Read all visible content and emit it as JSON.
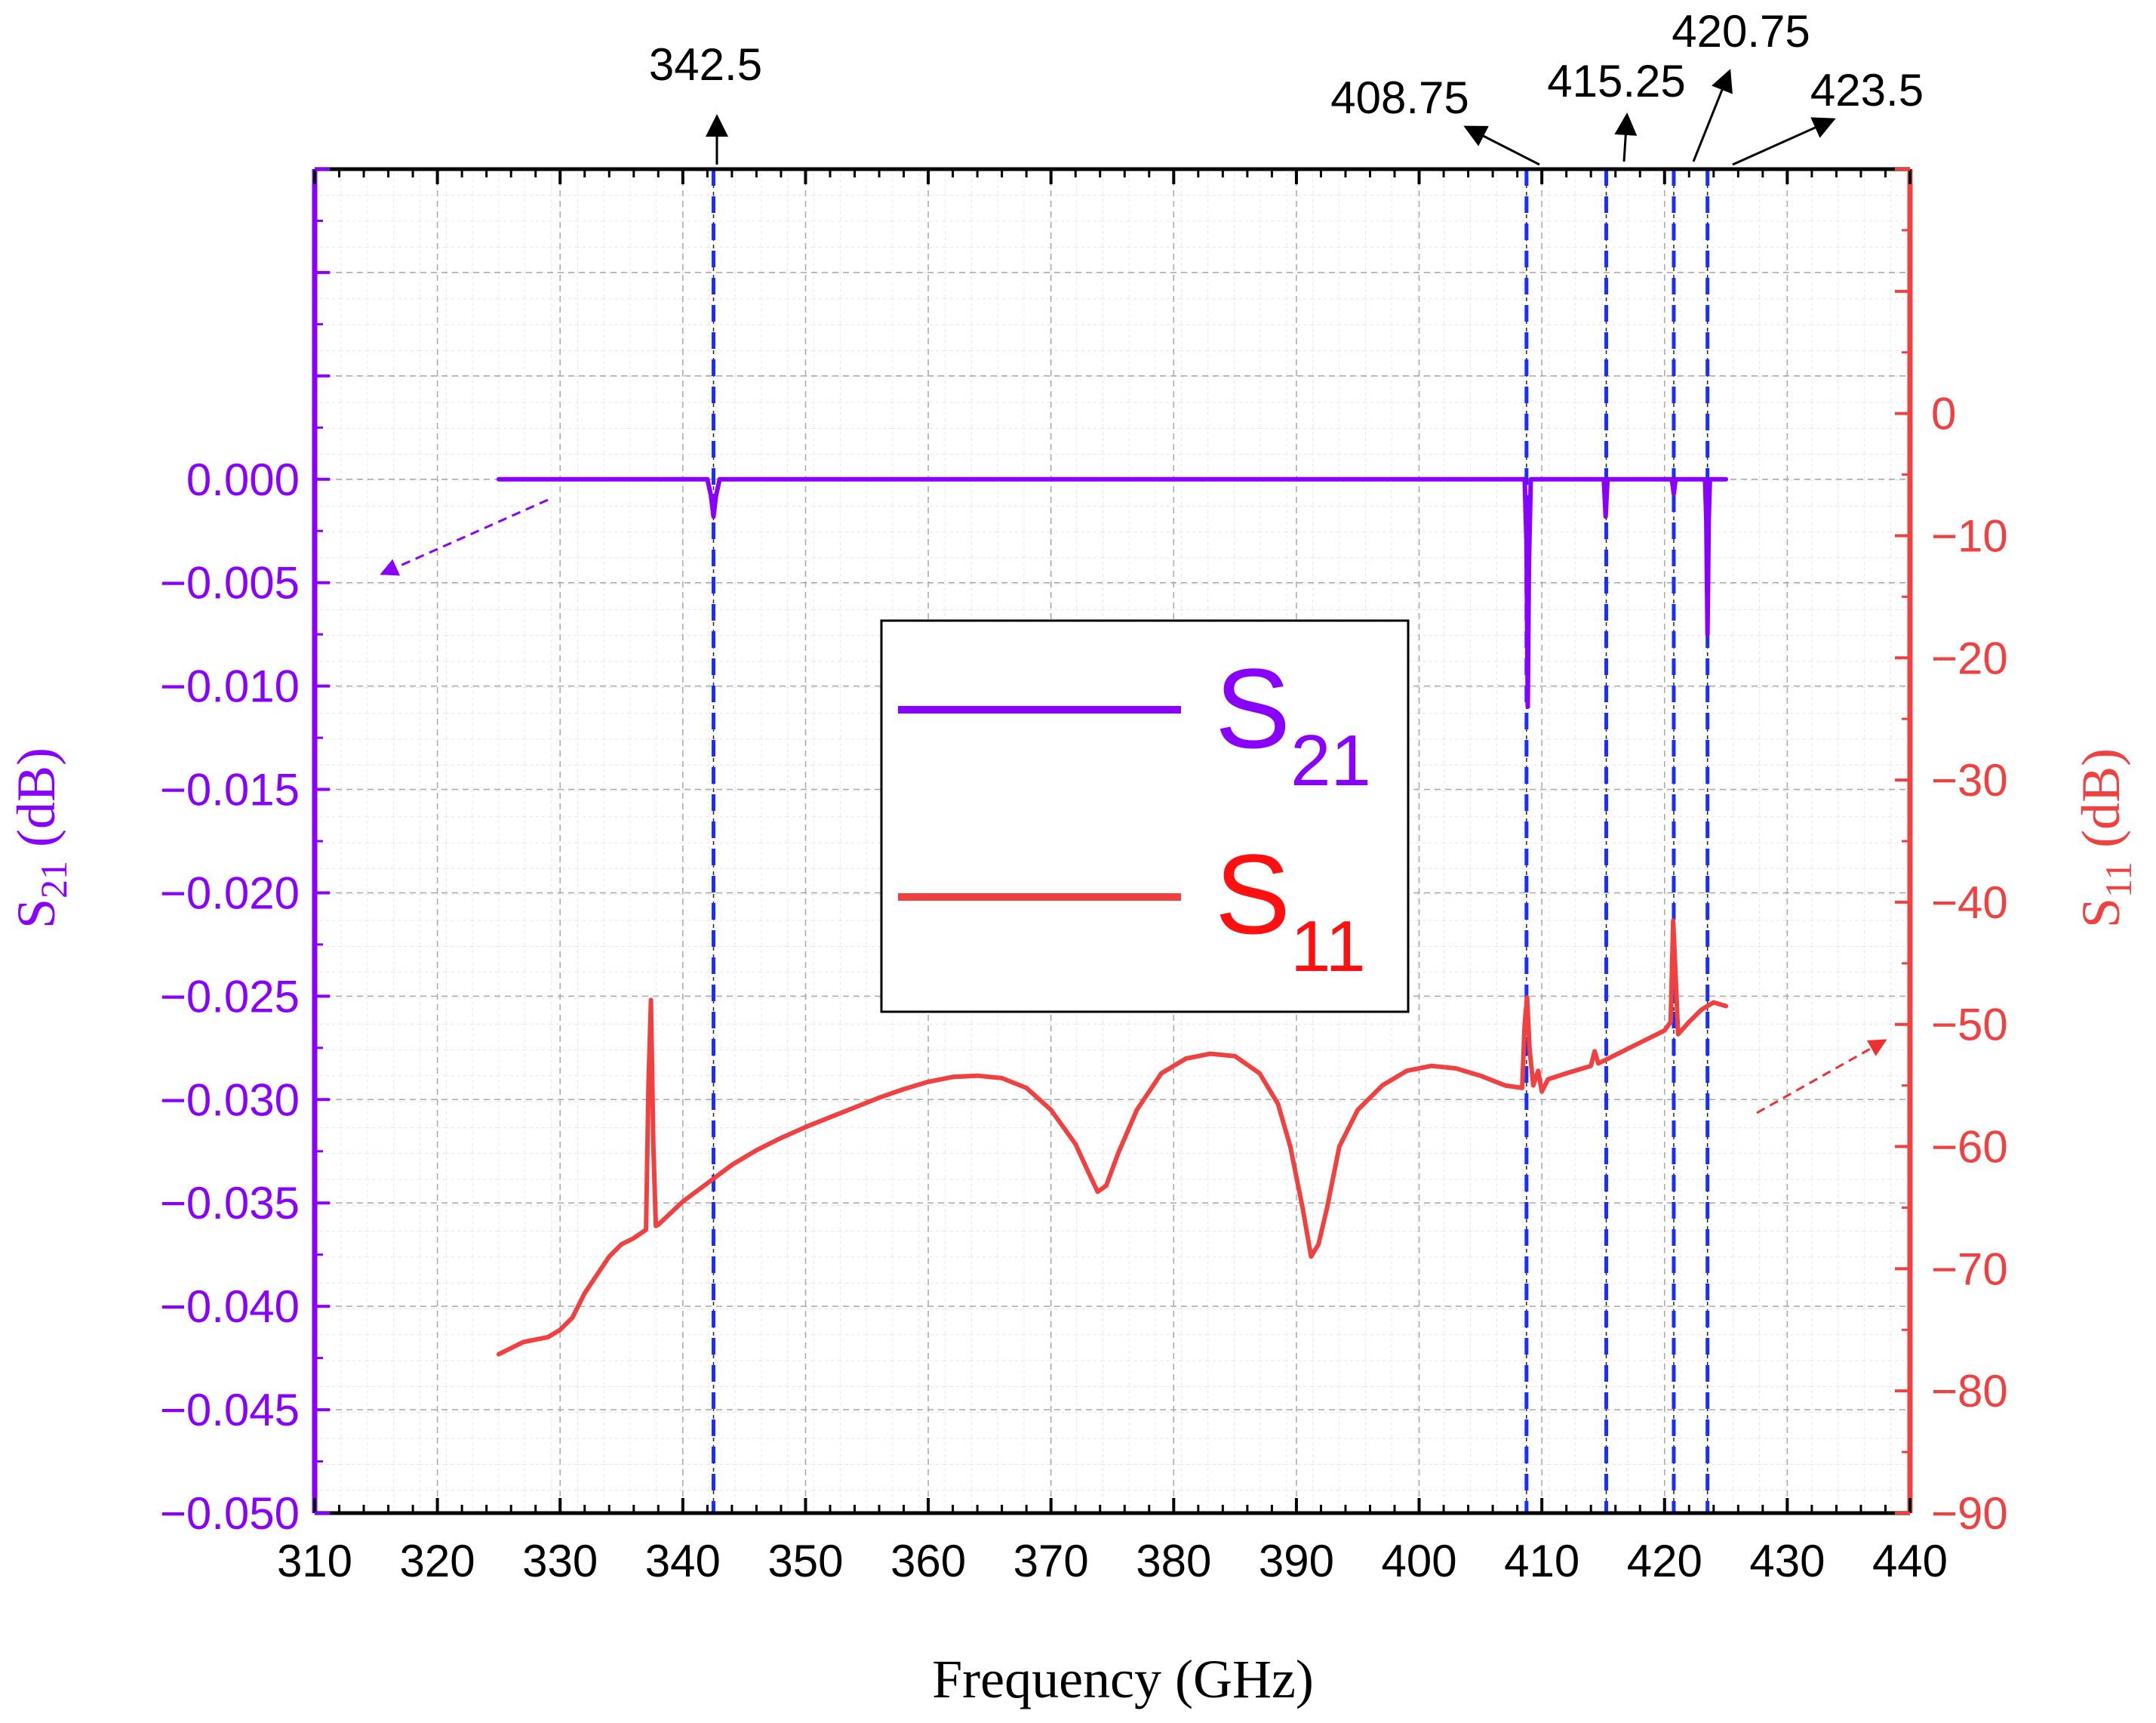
{
  "chart_data": {
    "type": "line",
    "xlabel": "Frequency (GHz)",
    "x_ticks": [
      310,
      320,
      330,
      340,
      350,
      360,
      370,
      380,
      390,
      400,
      410,
      420,
      430,
      440
    ],
    "xlim": [
      310,
      440
    ],
    "left_axis": {
      "label_main": "S",
      "label_sub": "21",
      "label_unit": " (dB)",
      "ylim": [
        -0.05,
        0.015
      ],
      "ticks": [
        "0.000",
        "−0.005",
        "−0.010",
        "−0.015",
        "−0.020",
        "−0.025",
        "−0.030",
        "−0.035",
        "−0.040",
        "−0.045",
        "−0.050"
      ],
      "tick_values": [
        0,
        -0.005,
        -0.01,
        -0.015,
        -0.02,
        -0.025,
        -0.03,
        -0.035,
        -0.04,
        -0.045,
        -0.05
      ],
      "color": "#8a00ff"
    },
    "right_axis": {
      "label_main": "S",
      "label_sub": "11",
      "label_unit": " (dB)",
      "ylim": [
        -90,
        20
      ],
      "ticks": [
        "0",
        "−10",
        "−20",
        "−30",
        "−40",
        "−50",
        "−60",
        "−70",
        "−80",
        "−90"
      ],
      "tick_values": [
        0,
        -10,
        -20,
        -30,
        -40,
        -50,
        -60,
        -70,
        -80,
        -90
      ],
      "color": "#f04040"
    },
    "series": [
      {
        "name_main": "S",
        "name_sub": "21",
        "axis": "left",
        "color": "#8a00ff",
        "points": [
          [
            325,
            0
          ],
          [
            342,
            0
          ],
          [
            342.3,
            -0.0008
          ],
          [
            342.5,
            -0.0018
          ],
          [
            342.7,
            -0.0008
          ],
          [
            343,
            0
          ],
          [
            350,
            0
          ],
          [
            380,
            0
          ],
          [
            408.6,
            0
          ],
          [
            408.75,
            -0.003
          ],
          [
            408.85,
            -0.011
          ],
          [
            408.95,
            -0.004
          ],
          [
            409.1,
            0
          ],
          [
            415.05,
            0
          ],
          [
            415.2,
            -0.0018
          ],
          [
            415.35,
            0
          ],
          [
            420.6,
            0
          ],
          [
            420.75,
            -0.0007
          ],
          [
            420.9,
            0
          ],
          [
            423.3,
            0
          ],
          [
            423.4,
            -0.002
          ],
          [
            423.5,
            -0.0075
          ],
          [
            423.6,
            -0.002
          ],
          [
            423.7,
            0
          ],
          [
            425,
            0
          ]
        ]
      },
      {
        "name_main": "S",
        "name_sub": "11",
        "axis": "right",
        "color": "#f04040",
        "points": [
          [
            325,
            -77
          ],
          [
            326,
            -76.5
          ],
          [
            327,
            -76
          ],
          [
            328,
            -75.8
          ],
          [
            329,
            -75.6
          ],
          [
            330,
            -75
          ],
          [
            331,
            -74
          ],
          [
            332,
            -72
          ],
          [
            333,
            -70.5
          ],
          [
            334,
            -69
          ],
          [
            335,
            -68
          ],
          [
            336,
            -67.5
          ],
          [
            337,
            -66.8
          ],
          [
            337.2,
            -55
          ],
          [
            337.4,
            -48
          ],
          [
            337.6,
            -60
          ],
          [
            337.8,
            -66.5
          ],
          [
            338,
            -66.4
          ],
          [
            340,
            -64.5
          ],
          [
            342,
            -63
          ],
          [
            344,
            -61.5
          ],
          [
            346,
            -60.3
          ],
          [
            348,
            -59.3
          ],
          [
            350,
            -58.4
          ],
          [
            352,
            -57.6
          ],
          [
            354,
            -56.8
          ],
          [
            356,
            -56
          ],
          [
            358,
            -55.3
          ],
          [
            360,
            -54.7
          ],
          [
            362,
            -54.3
          ],
          [
            364,
            -54.2
          ],
          [
            366,
            -54.4
          ],
          [
            368,
            -55.2
          ],
          [
            370,
            -57
          ],
          [
            372,
            -59.8
          ],
          [
            373,
            -62
          ],
          [
            373.8,
            -63.7
          ],
          [
            374.5,
            -63.2
          ],
          [
            375.5,
            -60.5
          ],
          [
            377,
            -57
          ],
          [
            379,
            -54
          ],
          [
            381,
            -52.8
          ],
          [
            383,
            -52.4
          ],
          [
            385,
            -52.6
          ],
          [
            387,
            -54
          ],
          [
            388.5,
            -56.5
          ],
          [
            389.5,
            -60
          ],
          [
            390.5,
            -65
          ],
          [
            391.2,
            -69
          ],
          [
            391.8,
            -68
          ],
          [
            392.5,
            -65
          ],
          [
            393.5,
            -60
          ],
          [
            395,
            -57
          ],
          [
            397,
            -55
          ],
          [
            399,
            -53.8
          ],
          [
            401,
            -53.4
          ],
          [
            403,
            -53.6
          ],
          [
            405,
            -54.2
          ],
          [
            407,
            -55
          ],
          [
            408.4,
            -55.2
          ],
          [
            408.6,
            -50
          ],
          [
            408.8,
            -47.8
          ],
          [
            409,
            -52
          ],
          [
            409.3,
            -55
          ],
          [
            409.7,
            -53.8
          ],
          [
            410,
            -55.5
          ],
          [
            410.5,
            -54.5
          ],
          [
            412,
            -54
          ],
          [
            414,
            -53.4
          ],
          [
            414.3,
            -52.2
          ],
          [
            414.6,
            -53.2
          ],
          [
            416,
            -52.5
          ],
          [
            418,
            -51.5
          ],
          [
            420,
            -50.5
          ],
          [
            420.5,
            -49.8
          ],
          [
            420.7,
            -41.5
          ],
          [
            420.9,
            -46
          ],
          [
            421.1,
            -50.8
          ],
          [
            422,
            -49.8
          ],
          [
            423,
            -48.8
          ],
          [
            424,
            -48.2
          ],
          [
            425,
            -48.5
          ]
        ]
      }
    ],
    "annotations": [
      "342.5",
      "408.75",
      "415.25",
      "420.75",
      "423.5"
    ],
    "marker_freqs": [
      342.5,
      408.75,
      415.25,
      420.75,
      423.5
    ],
    "marker_color": "#1a2eff",
    "legend_position": "center",
    "grid": true
  }
}
